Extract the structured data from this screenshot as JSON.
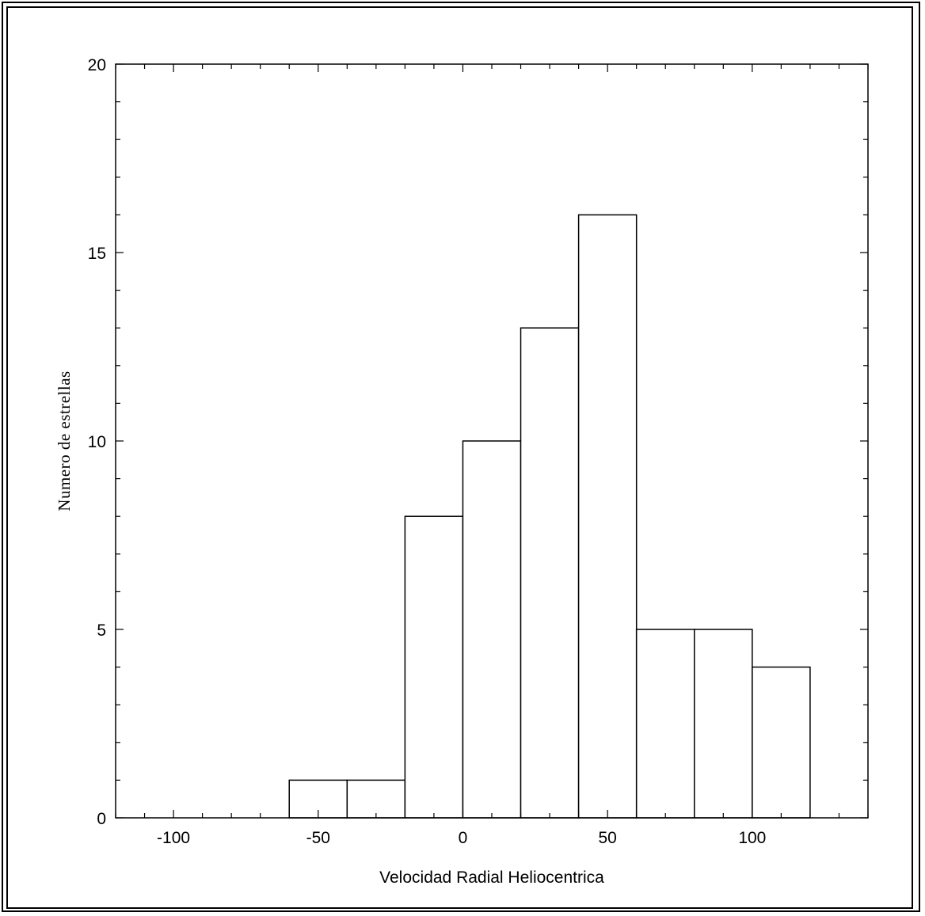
{
  "chart_data": {
    "type": "bar",
    "title": "",
    "xlabel": "Velocidad Radial Heliocentrica",
    "ylabel": "Numero de estrellas",
    "xlim": [
      -120,
      140
    ],
    "ylim": [
      0,
      20
    ],
    "x_ticks": [
      -100,
      -50,
      0,
      50,
      100
    ],
    "y_ticks": [
      0,
      5,
      10,
      15,
      20
    ],
    "x_minor_step": 10,
    "y_minor_step": 1,
    "grid": false,
    "bins": [
      {
        "x0": -60,
        "x1": -40,
        "count": 1
      },
      {
        "x0": -40,
        "x1": -20,
        "count": 1
      },
      {
        "x0": -20,
        "x1": 0,
        "count": 8
      },
      {
        "x0": 0,
        "x1": 20,
        "count": 10
      },
      {
        "x0": 20,
        "x1": 40,
        "count": 13
      },
      {
        "x0": 40,
        "x1": 60,
        "count": 16
      },
      {
        "x0": 60,
        "x1": 80,
        "count": 5
      },
      {
        "x0": 80,
        "x1": 100,
        "count": 5
      },
      {
        "x0": 100,
        "x1": 120,
        "count": 4
      }
    ],
    "colors": {
      "bar_fill": "#ffffff",
      "bar_stroke": "#000000",
      "axis": "#000000"
    }
  }
}
